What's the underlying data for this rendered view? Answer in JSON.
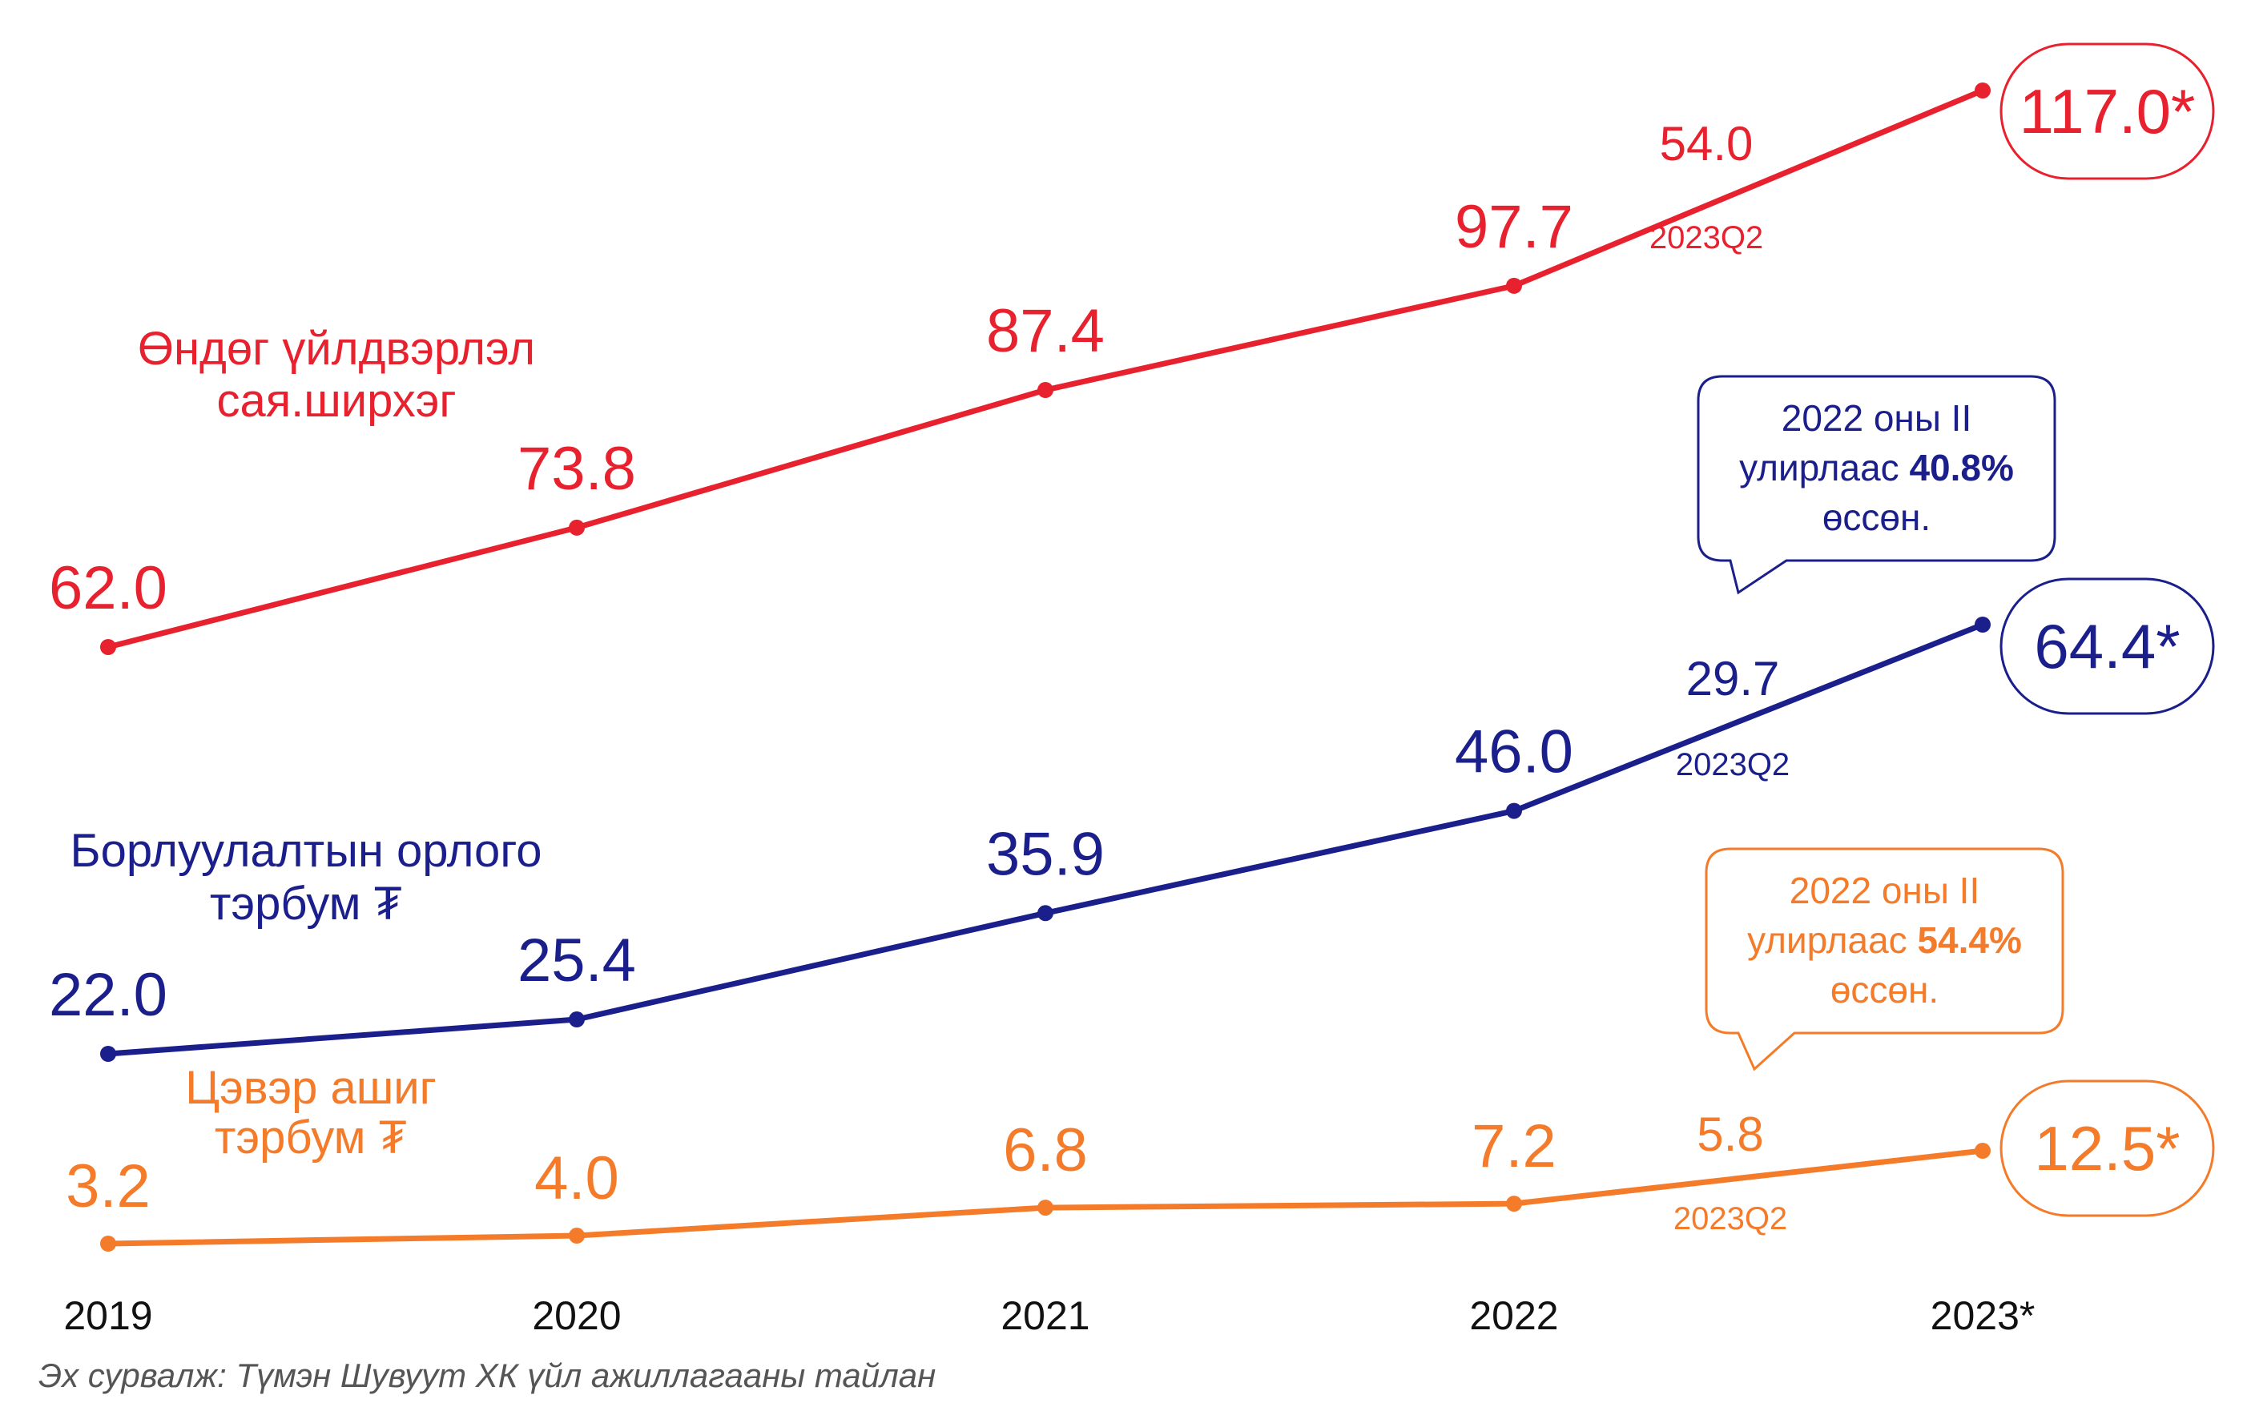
{
  "chart_data": {
    "type": "line",
    "categories": [
      "2019",
      "2020",
      "2021",
      "2022",
      "2023*"
    ],
    "colors": {
      "production": "#e8212e",
      "revenue": "#1b1f8c",
      "profit": "#f47b2a"
    },
    "series": [
      {
        "key": "production",
        "name": "Өндөг үйлдвэрлэл",
        "unit": "сая.ширхэг",
        "values": [
          62.0,
          73.8,
          87.4,
          97.7,
          117.0
        ],
        "value_labels": [
          "62.0",
          "73.8",
          "87.4",
          "97.7",
          "117.0*"
        ],
        "q2_value": "54.0",
        "q2_label": "2023Q2"
      },
      {
        "key": "revenue",
        "name": "Борлуулалтын орлого",
        "unit": "тэрбум ₮",
        "values": [
          22.0,
          25.4,
          35.9,
          46.0,
          64.4
        ],
        "value_labels": [
          "22.0",
          "25.4",
          "35.9",
          "46.0",
          "64.4*"
        ],
        "q2_value": "29.7",
        "q2_label": "2023Q2",
        "callout": {
          "line1": "2022 оны II",
          "line2_prefix": "улирлаас ",
          "line2_bold": "40.8%",
          "line3": "өссөн."
        }
      },
      {
        "key": "profit",
        "name": "Цэвэр ашиг",
        "unit": "тэрбум ₮",
        "values": [
          3.2,
          4.0,
          6.8,
          7.2,
          12.5
        ],
        "value_labels": [
          "3.2",
          "4.0",
          "6.8",
          "7.2",
          "12.5*"
        ],
        "q2_value": "5.8",
        "q2_label": "2023Q2",
        "callout": {
          "line1": "2022 оны II",
          "line2_prefix": "улирлаас ",
          "line2_bold": "54.4%",
          "line3": "өссөн."
        }
      }
    ]
  },
  "source_note": "Эх сурвалж: Түмэн Шувуут ХК үйл ажиллагааны тайлан"
}
